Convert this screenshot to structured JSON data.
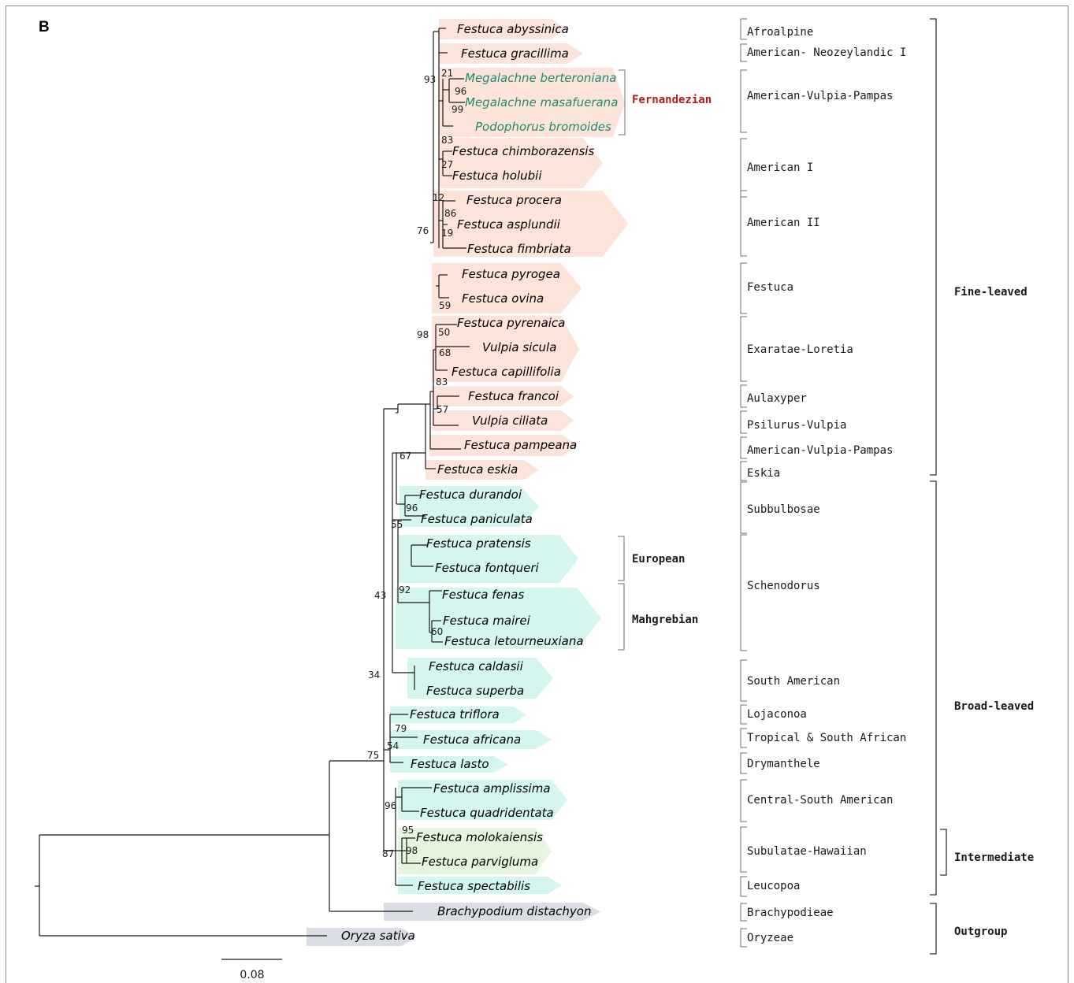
{
  "panel_label": "B",
  "scale_bar": {
    "label": "0.08"
  },
  "colors": {
    "fine_leaved": "#fde4da",
    "broad_leaved": "#d5f5ef",
    "intermediate": "#e6f5de",
    "outgroup": "#d9dde4",
    "fernandezian_label": "#b01d1d",
    "fernandezian_taxa": "#1f8a6e"
  },
  "taxa": [
    "Festuca abyssinica",
    "Festuca gracillima",
    "Megalachne berteroniana",
    "Megalachne masafuerana",
    "Podophorus bromoides",
    "Festuca chimborazensis",
    "Festuca holubii",
    "Festuca procera",
    "Festuca asplundii",
    "Festuca fimbriata",
    "Festuca pyrogea",
    "Festuca ovina",
    "Festuca pyrenaica",
    "Vulpia sicula",
    "Festuca capillifolia",
    "Festuca francoi",
    "Vulpia ciliata",
    "Festuca pampeana",
    "Festuca eskia",
    "Festuca durandoi",
    "Festuca paniculata",
    "Festuca pratensis",
    "Festuca fontqueri",
    "Festuca fenas",
    "Festuca mairei",
    "Festuca letourneuxiana",
    "Festuca caldasii",
    "Festuca superba",
    "Festuca triflora",
    "Festuca africana",
    "Festuca lasto",
    "Festuca amplissima",
    "Festuca quadridentata",
    "Festuca molokaiensis",
    "Festuca parvigluma",
    "Festuca spectabilis",
    "Brachypodium distachyon",
    "Oryza sativa"
  ],
  "supports": [
    "93",
    "21",
    "96",
    "99",
    "83",
    "27",
    "12",
    "86",
    "19",
    "76",
    "59",
    "50",
    "98",
    "68",
    "83",
    "57",
    "67",
    "96",
    "55",
    "92",
    "60",
    "43",
    "34",
    "79",
    "54",
    "75",
    "96",
    "95",
    "98",
    "87"
  ],
  "middle_groups": [
    "Fernandezian",
    "European",
    "Mahgrebian"
  ],
  "lineages": [
    "Afroalpine",
    "American- Neozeylandic I",
    "American-Vulpia-Pampas",
    "American I",
    "American II",
    "Festuca",
    "Exaratae-Loretia",
    "Aulaxyper",
    "Psilurus-Vulpia",
    "American-Vulpia-Pampas",
    "Eskia",
    "Subbulbosae",
    "Schenodorus",
    "South American",
    "Lojaconoa",
    "Tropical & South African",
    "Drymanthele",
    "Central-South American",
    "Subulatae-Hawaiian",
    "Leucopoa",
    "Brachypodieae",
    "Oryzeae"
  ],
  "major_groups": [
    "Fine-leaved",
    "Broad-leaved",
    "Intermediate",
    "Outgroup"
  ]
}
